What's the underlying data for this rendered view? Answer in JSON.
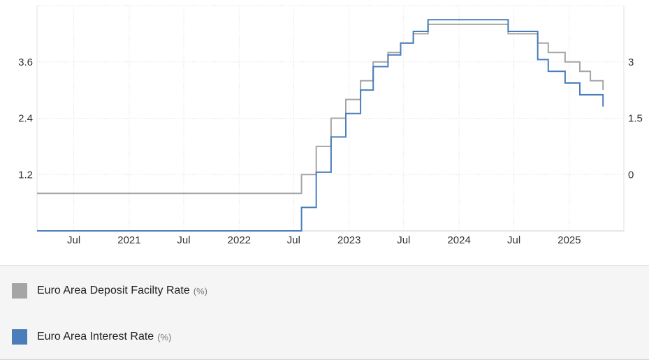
{
  "chart_data": {
    "type": "line",
    "step": true,
    "title": "",
    "xlabel": "",
    "x_tick_labels": [
      "Jul",
      "2021",
      "Jul",
      "2022",
      "Jul",
      "2023",
      "Jul",
      "2024",
      "Jul",
      "2025"
    ],
    "x_ticks": [
      "2020-07-01",
      "2021-01-01",
      "2021-07-01",
      "2022-01-01",
      "2022-07-01",
      "2023-01-01",
      "2023-07-01",
      "2024-01-01",
      "2024-07-01",
      "2025-01-01"
    ],
    "xlim": [
      "2020-03-01",
      "2025-07-01"
    ],
    "left_axis": {
      "ticks": [
        "3.6",
        "2.4",
        "1.2"
      ],
      "ylim": [
        0,
        4.8
      ]
    },
    "right_axis": {
      "ticks": [
        "3",
        "1.5",
        "0"
      ],
      "ylim": [
        -1.5,
        4.5
      ]
    },
    "grid": true,
    "series": [
      {
        "name": "Euro Area Deposit Facilty Rate",
        "unit": "(%)",
        "color": "#a5a5a5",
        "axis": "right",
        "points": [
          [
            "2020-03-01",
            -0.5
          ],
          [
            "2022-07-27",
            0.0
          ],
          [
            "2022-09-14",
            0.75
          ],
          [
            "2022-11-02",
            1.5
          ],
          [
            "2022-12-21",
            2.0
          ],
          [
            "2023-02-08",
            2.5
          ],
          [
            "2023-03-22",
            3.0
          ],
          [
            "2023-05-10",
            3.25
          ],
          [
            "2023-06-21",
            3.5
          ],
          [
            "2023-08-02",
            3.75
          ],
          [
            "2023-09-20",
            4.0
          ],
          [
            "2024-06-12",
            3.75
          ],
          [
            "2024-09-18",
            3.5
          ],
          [
            "2024-10-23",
            3.25
          ],
          [
            "2024-12-18",
            3.0
          ],
          [
            "2025-02-05",
            2.75
          ],
          [
            "2025-03-12",
            2.5
          ],
          [
            "2025-04-23",
            2.25
          ]
        ]
      },
      {
        "name": "Euro Area Interest Rate",
        "unit": "(%)",
        "color": "#4a7ebb",
        "axis": "left",
        "points": [
          [
            "2020-03-01",
            0.0
          ],
          [
            "2022-07-27",
            0.5
          ],
          [
            "2022-09-14",
            1.25
          ],
          [
            "2022-11-02",
            2.0
          ],
          [
            "2022-12-21",
            2.5
          ],
          [
            "2023-02-08",
            3.0
          ],
          [
            "2023-03-22",
            3.5
          ],
          [
            "2023-05-10",
            3.75
          ],
          [
            "2023-06-21",
            4.0
          ],
          [
            "2023-08-02",
            4.25
          ],
          [
            "2023-09-20",
            4.5
          ],
          [
            "2024-06-12",
            4.25
          ],
          [
            "2024-09-18",
            3.65
          ],
          [
            "2024-10-23",
            3.4
          ],
          [
            "2024-12-18",
            3.15
          ],
          [
            "2025-02-05",
            2.9
          ],
          [
            "2025-04-23",
            2.65
          ]
        ]
      }
    ]
  },
  "legend": [
    {
      "label": "Euro Area Deposit Facilty Rate",
      "unit": "(%)",
      "color": "#a5a5a5"
    },
    {
      "label": "Euro Area Interest Rate",
      "unit": "(%)",
      "color": "#4a7ebb"
    }
  ]
}
